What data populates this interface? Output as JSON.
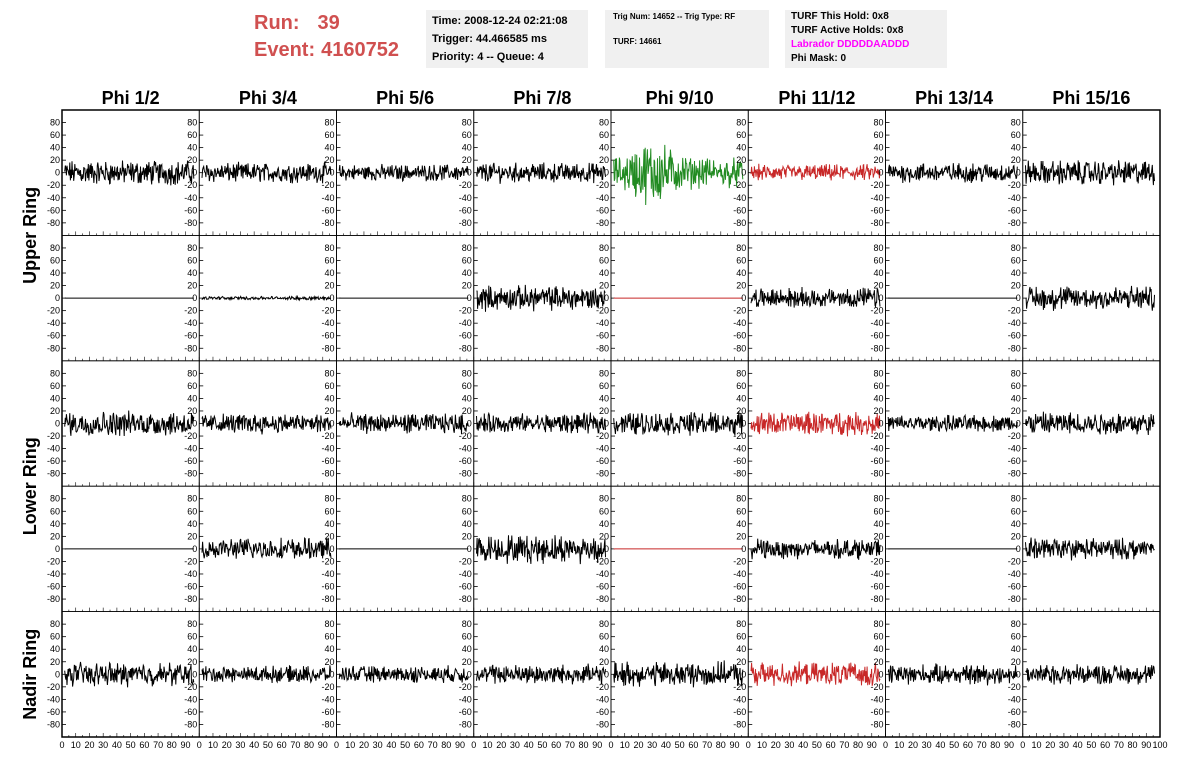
{
  "header": {
    "run_label": "Run:",
    "run_value": "39",
    "event_label": "Event:",
    "event_value": "4160752",
    "time": "Time: 2008-12-24 02:21:08",
    "trigger": "Trigger: 44.466585 ms",
    "priority": "Priority: 4 -- Queue: 4",
    "trig_num": "Trig Num: 14652 -- Trig Type: RF",
    "turf": "TURF: 14661",
    "turf_this_hold": "TURF This Hold: 0x8",
    "turf_active_holds": "TURF Active Holds: 0x8",
    "labrador": "Labrador DDDDDAADDD",
    "phi_mask": "Phi Mask: 0"
  },
  "colors": {
    "run_text": "#d05050",
    "labrador_text": "#ff00ff",
    "trace_default": "#000000",
    "trace_red": "#c82828",
    "trace_green": "#228b22",
    "info_bg": "#f0f0f0"
  },
  "chart_data": {
    "type": "line",
    "columns": [
      "Phi 1/2",
      "Phi 3/4",
      "Phi 5/6",
      "Phi 7/8",
      "Phi 9/10",
      "Phi 11/12",
      "Phi 13/14",
      "Phi 15/16"
    ],
    "ring_labels": [
      {
        "name": "Upper Ring",
        "rows": [
          0,
          1
        ]
      },
      {
        "name": "Lower Ring",
        "rows": [
          2,
          3
        ]
      },
      {
        "name": "Nadir Ring",
        "rows": [
          4
        ]
      }
    ],
    "ylim": [
      -100,
      100
    ],
    "xlim": [
      0,
      100
    ],
    "y_ticks": [
      -80,
      -60,
      -40,
      -20,
      0,
      20,
      40,
      60,
      80
    ],
    "x_ticks": [
      0,
      10,
      20,
      30,
      40,
      50,
      60,
      70,
      80,
      90,
      100
    ],
    "x_tick_labels": [
      "0",
      "10",
      "20",
      "30",
      "40",
      "50",
      "60",
      "70",
      "80",
      "90",
      "100"
    ],
    "y_tick_labels": [
      "-80",
      "-60",
      "-40",
      "-20",
      "0",
      "20",
      "40",
      "60",
      "80"
    ],
    "grid": false,
    "panels": [
      [
        {
          "amp": 15,
          "color": "trace_default"
        },
        {
          "amp": 12,
          "color": "trace_default"
        },
        {
          "amp": 10,
          "color": "trace_default"
        },
        {
          "amp": 12,
          "color": "trace_default"
        },
        {
          "amp": 28,
          "color": "trace_green",
          "burst": true
        },
        {
          "amp": 10,
          "color": "trace_red"
        },
        {
          "amp": 12,
          "color": "trace_default"
        },
        {
          "amp": 15,
          "color": "trace_default"
        }
      ],
      [
        {
          "amp": 0,
          "color": "trace_default"
        },
        {
          "amp": 2,
          "color": "trace_default"
        },
        {
          "amp": 0,
          "color": "trace_default"
        },
        {
          "amp": 15,
          "color": "trace_default"
        },
        {
          "amp": 0,
          "color": "trace_red"
        },
        {
          "amp": 12,
          "color": "trace_default"
        },
        {
          "amp": 0,
          "color": "trace_default"
        },
        {
          "amp": 15,
          "color": "trace_default"
        }
      ],
      [
        {
          "amp": 15,
          "color": "trace_default"
        },
        {
          "amp": 12,
          "color": "trace_default"
        },
        {
          "amp": 12,
          "color": "trace_default"
        },
        {
          "amp": 12,
          "color": "trace_default"
        },
        {
          "amp": 14,
          "color": "trace_default"
        },
        {
          "amp": 14,
          "color": "trace_red"
        },
        {
          "amp": 10,
          "color": "trace_default"
        },
        {
          "amp": 14,
          "color": "trace_default"
        }
      ],
      [
        {
          "amp": 0,
          "color": "trace_default"
        },
        {
          "amp": 13,
          "color": "trace_default"
        },
        {
          "amp": 0,
          "color": "trace_default"
        },
        {
          "amp": 17,
          "color": "trace_default"
        },
        {
          "amp": 0,
          "color": "trace_red"
        },
        {
          "amp": 12,
          "color": "trace_default"
        },
        {
          "amp": 0,
          "color": "trace_default"
        },
        {
          "amp": 13,
          "color": "trace_default"
        }
      ],
      [
        {
          "amp": 14,
          "color": "trace_default"
        },
        {
          "amp": 10,
          "color": "trace_default"
        },
        {
          "amp": 10,
          "color": "trace_default"
        },
        {
          "amp": 12,
          "color": "trace_default"
        },
        {
          "amp": 15,
          "color": "trace_default"
        },
        {
          "amp": 14,
          "color": "trace_red"
        },
        {
          "amp": 12,
          "color": "trace_default"
        },
        {
          "amp": 12,
          "color": "trace_default"
        }
      ]
    ]
  }
}
